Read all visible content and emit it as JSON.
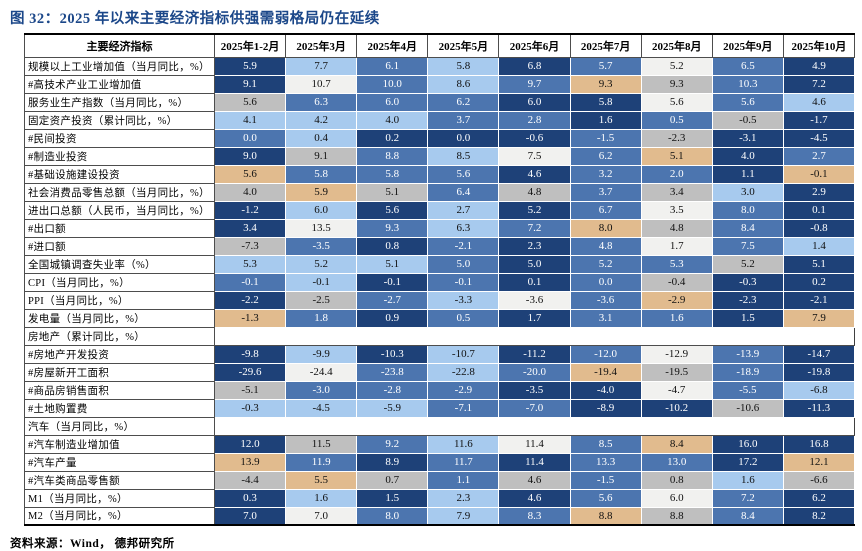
{
  "source_note": "资料来源：Wind， 德邦研究所",
  "chart_data": {
    "type": "heatmap",
    "title": "图 32：2025 年以来主要经济指标供强需弱格局仍在延续",
    "unit": "%",
    "legend_position": "none",
    "grid": true,
    "header": [
      "主要经济指标",
      "2025年1-2月",
      "2025年3月",
      "2025年4月",
      "2025年5月",
      "2025年6月",
      "2025年7月",
      "2025年8月",
      "2025年9月",
      "2025年10月"
    ],
    "palette": {
      "D": {
        "bg": "#1e4178",
        "fg": "#ffffff"
      },
      "M": {
        "bg": "#4c75af",
        "fg": "#ffffff"
      },
      "L": {
        "bg": "#a7caee",
        "fg": "#111111"
      },
      "W": {
        "bg": "#f1f1ef",
        "fg": "#111111"
      },
      "G": {
        "bg": "#bfbfbf",
        "fg": "#111111"
      },
      "O": {
        "bg": "#e1bb8e",
        "fg": "#111111"
      }
    },
    "rows": [
      {
        "label": "规模以上工业增加值（当月同比，%）",
        "values": [
          "5.9",
          "7.7",
          "6.1",
          "5.8",
          "6.8",
          "5.7",
          "5.2",
          "6.5",
          "4.9"
        ],
        "colors": [
          "D",
          "L",
          "M",
          "L",
          "D",
          "M",
          "W",
          "M",
          "D"
        ]
      },
      {
        "label": "#高技术产业工业增加值",
        "values": [
          "9.1",
          "10.7",
          "10.0",
          "8.6",
          "9.7",
          "9.3",
          "9.3",
          "10.3",
          "7.2"
        ],
        "colors": [
          "D",
          "W",
          "M",
          "L",
          "M",
          "O",
          "G",
          "M",
          "D"
        ]
      },
      {
        "label": "服务业生产指数（当月同比，%）",
        "values": [
          "5.6",
          "6.3",
          "6.0",
          "6.2",
          "6.0",
          "5.8",
          "5.6",
          "5.6",
          "4.6"
        ],
        "colors": [
          "G",
          "M",
          "M",
          "M",
          "D",
          "D",
          "W",
          "M",
          "L"
        ]
      },
      {
        "label": "固定资产投资（累计同比，%）",
        "values": [
          "4.1",
          "4.2",
          "4.0",
          "3.7",
          "2.8",
          "1.6",
          "0.5",
          "-0.5",
          "-1.7"
        ],
        "colors": [
          "L",
          "L",
          "L",
          "M",
          "M",
          "D",
          "M",
          "G",
          "D"
        ]
      },
      {
        "label": "#民间投资",
        "values": [
          "0.0",
          "0.4",
          "0.2",
          "0.0",
          "-0.6",
          "-1.5",
          "-2.3",
          "-3.1",
          "-4.5"
        ],
        "colors": [
          "M",
          "L",
          "D",
          "D",
          "D",
          "M",
          "G",
          "D",
          "D"
        ]
      },
      {
        "label": "#制造业投资",
        "values": [
          "9.0",
          "9.1",
          "8.8",
          "8.5",
          "7.5",
          "6.2",
          "5.1",
          "4.0",
          "2.7"
        ],
        "colors": [
          "D",
          "G",
          "M",
          "L",
          "W",
          "M",
          "O",
          "D",
          "M"
        ]
      },
      {
        "label": "#基础设施建设投资",
        "values": [
          "5.6",
          "5.8",
          "5.8",
          "5.6",
          "4.6",
          "3.2",
          "2.0",
          "1.1",
          "-0.1"
        ],
        "colors": [
          "O",
          "M",
          "M",
          "M",
          "D",
          "M",
          "M",
          "D",
          "O"
        ]
      },
      {
        "label": "社会消费品零售总额（当月同比，%）",
        "values": [
          "4.0",
          "5.9",
          "5.1",
          "6.4",
          "4.8",
          "3.7",
          "3.4",
          "3.0",
          "2.9"
        ],
        "colors": [
          "G",
          "O",
          "G",
          "M",
          "G",
          "M",
          "G",
          "L",
          "D"
        ]
      },
      {
        "label": "进出口总额（人民币，当月同比，%）",
        "values": [
          "-1.2",
          "6.0",
          "5.6",
          "2.7",
          "5.2",
          "6.7",
          "3.5",
          "8.0",
          "0.1"
        ],
        "colors": [
          "D",
          "L",
          "D",
          "L",
          "D",
          "M",
          "W",
          "M",
          "D"
        ]
      },
      {
        "label": "#出口额",
        "values": [
          "3.4",
          "13.5",
          "9.3",
          "6.3",
          "7.2",
          "8.0",
          "4.8",
          "8.4",
          "-0.8"
        ],
        "colors": [
          "D",
          "W",
          "M",
          "L",
          "M",
          "O",
          "G",
          "M",
          "D"
        ]
      },
      {
        "label": "#进口额",
        "values": [
          "-7.3",
          "-3.5",
          "0.8",
          "-2.1",
          "2.3",
          "4.8",
          "1.7",
          "7.5",
          "1.4"
        ],
        "colors": [
          "G",
          "M",
          "D",
          "M",
          "D",
          "M",
          "W",
          "M",
          "L"
        ]
      },
      {
        "label": "全国城镇调查失业率（%）",
        "values": [
          "5.3",
          "5.2",
          "5.1",
          "5.0",
          "5.0",
          "5.2",
          "5.3",
          "5.2",
          "5.1"
        ],
        "colors": [
          "L",
          "L",
          "L",
          "M",
          "D",
          "M",
          "M",
          "G",
          "D"
        ]
      },
      {
        "label": "CPI（当月同比，%）",
        "values": [
          "-0.1",
          "-0.1",
          "-0.1",
          "-0.1",
          "0.1",
          "0.0",
          "-0.4",
          "-0.3",
          "0.2"
        ],
        "colors": [
          "M",
          "L",
          "D",
          "M",
          "D",
          "M",
          "G",
          "D",
          "D"
        ]
      },
      {
        "label": "PPI（当月同比，%）",
        "values": [
          "-2.2",
          "-2.5",
          "-2.7",
          "-3.3",
          "-3.6",
          "-3.6",
          "-2.9",
          "-2.3",
          "-2.1"
        ],
        "colors": [
          "D",
          "G",
          "M",
          "L",
          "W",
          "M",
          "O",
          "D",
          "D"
        ]
      },
      {
        "label": "发电量（当月同比，%）",
        "values": [
          "-1.3",
          "1.8",
          "0.9",
          "0.5",
          "1.7",
          "3.1",
          "1.6",
          "1.5",
          "7.9"
        ],
        "colors": [
          "O",
          "M",
          "D",
          "M",
          "D",
          "M",
          "M",
          "D",
          "O"
        ]
      },
      {
        "label": "房地产（累计同比，%）",
        "section": true,
        "values": [],
        "colors": []
      },
      {
        "label": "#房地产开发投资",
        "values": [
          "-9.8",
          "-9.9",
          "-10.3",
          "-10.7",
          "-11.2",
          "-12.0",
          "-12.9",
          "-13.9",
          "-14.7"
        ],
        "colors": [
          "D",
          "L",
          "D",
          "L",
          "D",
          "M",
          "W",
          "M",
          "D"
        ]
      },
      {
        "label": "#房屋新开工面积",
        "values": [
          "-29.6",
          "-24.4",
          "-23.8",
          "-22.8",
          "-20.0",
          "-19.4",
          "-19.5",
          "-18.9",
          "-19.8"
        ],
        "colors": [
          "D",
          "W",
          "M",
          "L",
          "M",
          "O",
          "G",
          "M",
          "D"
        ]
      },
      {
        "label": "#商品房销售面积",
        "values": [
          "-5.1",
          "-3.0",
          "-2.8",
          "-2.9",
          "-3.5",
          "-4.0",
          "-4.7",
          "-5.5",
          "-6.8"
        ],
        "colors": [
          "G",
          "M",
          "M",
          "M",
          "D",
          "D",
          "W",
          "M",
          "L"
        ]
      },
      {
        "label": "#土地购置费",
        "values": [
          "-0.3",
          "-4.5",
          "-5.9",
          "-7.1",
          "-7.0",
          "-8.9",
          "-10.2",
          "-10.6",
          "-11.3"
        ],
        "colors": [
          "L",
          "L",
          "L",
          "M",
          "M",
          "D",
          "D",
          "G",
          "D"
        ]
      },
      {
        "label": "汽车（当月同比，%）",
        "section": true,
        "values": [],
        "colors": []
      },
      {
        "label": "#汽车制造业增加值",
        "values": [
          "12.0",
          "11.5",
          "9.2",
          "11.6",
          "11.4",
          "8.5",
          "8.4",
          "16.0",
          "16.8"
        ],
        "colors": [
          "D",
          "G",
          "M",
          "L",
          "W",
          "M",
          "O",
          "D",
          "D"
        ]
      },
      {
        "label": "#汽车产量",
        "values": [
          "13.9",
          "11.9",
          "8.9",
          "11.7",
          "11.4",
          "13.3",
          "13.0",
          "17.2",
          "12.1"
        ],
        "colors": [
          "O",
          "M",
          "D",
          "M",
          "D",
          "M",
          "M",
          "D",
          "O"
        ]
      },
      {
        "label": "#汽车类商品零售额",
        "values": [
          "-4.4",
          "5.5",
          "0.7",
          "1.1",
          "4.6",
          "-1.5",
          "0.8",
          "1.6",
          "-6.6"
        ],
        "colors": [
          "G",
          "O",
          "G",
          "M",
          "G",
          "M",
          "G",
          "L",
          "G"
        ]
      },
      {
        "label": "M1（当月同比，%）",
        "values": [
          "0.3",
          "1.6",
          "1.5",
          "2.3",
          "4.6",
          "5.6",
          "6.0",
          "7.2",
          "6.2"
        ],
        "colors": [
          "D",
          "L",
          "D",
          "L",
          "D",
          "M",
          "W",
          "M",
          "D"
        ]
      },
      {
        "label": "M2（当月同比，%）",
        "values": [
          "7.0",
          "7.0",
          "8.0",
          "7.9",
          "8.3",
          "8.8",
          "8.8",
          "8.4",
          "8.2"
        ],
        "colors": [
          "D",
          "W",
          "M",
          "L",
          "M",
          "O",
          "G",
          "M",
          "D"
        ]
      }
    ]
  }
}
